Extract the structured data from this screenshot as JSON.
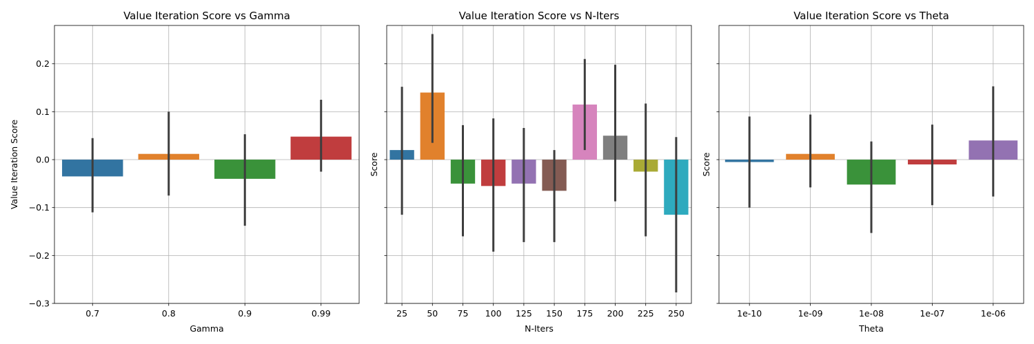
{
  "chart_data": [
    {
      "type": "bar",
      "title": "Value Iteration Score vs Gamma",
      "xlabel": "Gamma",
      "ylabel": "Value Iteration Score",
      "categories": [
        "0.7",
        "0.8",
        "0.9",
        "0.99"
      ],
      "values": [
        -0.035,
        0.012,
        -0.04,
        0.048
      ],
      "ci": [
        [
          -0.11,
          0.045
        ],
        [
          -0.075,
          0.1
        ],
        [
          -0.138,
          0.053
        ],
        [
          -0.025,
          0.125
        ]
      ],
      "colors": [
        "#3274a1",
        "#e1812c",
        "#3a923a",
        "#c03d3e"
      ],
      "ylim": [
        -0.3,
        0.28
      ],
      "yticks": [
        -0.3,
        -0.2,
        -0.1,
        0.0,
        0.1,
        0.2
      ],
      "ytick_labels": [
        "−0.3",
        "−0.2",
        "−0.1",
        "0.0",
        "0.1",
        "0.2"
      ],
      "grid": true
    },
    {
      "type": "bar",
      "title": "Value Iteration Score vs N-Iters",
      "xlabel": "N-Iters",
      "ylabel": "Score",
      "categories": [
        "25",
        "50",
        "75",
        "100",
        "125",
        "150",
        "175",
        "200",
        "225",
        "250"
      ],
      "values": [
        0.02,
        0.14,
        -0.05,
        -0.055,
        -0.05,
        -0.065,
        0.115,
        0.05,
        -0.025,
        -0.115
      ],
      "ci": [
        [
          -0.115,
          0.152
        ],
        [
          0.035,
          0.262
        ],
        [
          -0.16,
          0.072
        ],
        [
          -0.192,
          0.086
        ],
        [
          -0.172,
          0.066
        ],
        [
          -0.172,
          0.02
        ],
        [
          0.02,
          0.21
        ],
        [
          -0.087,
          0.198
        ],
        [
          -0.16,
          0.117
        ],
        [
          -0.277,
          0.047
        ]
      ],
      "colors": [
        "#3274a1",
        "#e1812c",
        "#3a923a",
        "#c03d3e",
        "#9372b2",
        "#845b53",
        "#d684bd",
        "#7f7f7f",
        "#a9aa35",
        "#2eaabe"
      ],
      "ylim": [
        -0.3,
        0.28
      ],
      "grid": true
    },
    {
      "type": "bar",
      "title": "Value Iteration Score vs Theta",
      "xlabel": "Theta",
      "ylabel": "Score",
      "categories": [
        "1e-10",
        "1e-09",
        "1e-08",
        "1e-07",
        "1e-06"
      ],
      "values": [
        -0.005,
        0.012,
        -0.052,
        -0.01,
        0.04
      ],
      "ci": [
        [
          -0.1,
          0.09
        ],
        [
          -0.058,
          0.094
        ],
        [
          -0.153,
          0.038
        ],
        [
          -0.095,
          0.073
        ],
        [
          -0.077,
          0.153
        ]
      ],
      "colors": [
        "#3274a1",
        "#e1812c",
        "#3a923a",
        "#c03d3e",
        "#9372b2"
      ],
      "ylim": [
        -0.3,
        0.28
      ],
      "grid": true
    }
  ]
}
